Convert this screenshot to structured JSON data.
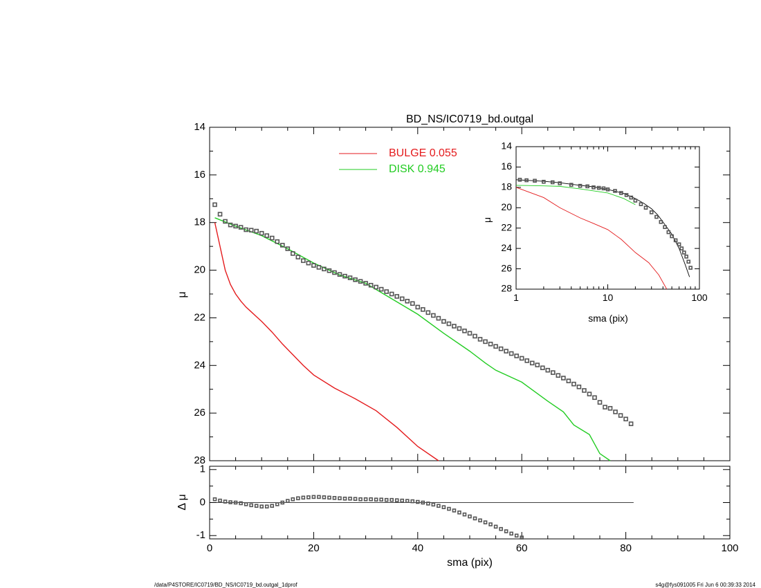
{
  "chart_data": [
    {
      "id": "main",
      "type": "line",
      "title": "BD_NS/IC0719_bd.outgal",
      "xlabel": "",
      "ylabel": "μ",
      "xlim": [
        0,
        100
      ],
      "ylim": [
        28,
        14
      ],
      "x_ticks": [
        0,
        20,
        40,
        60,
        80,
        100
      ],
      "y_ticks": [
        14,
        16,
        18,
        20,
        22,
        24,
        26,
        28
      ],
      "legend_position": "top-center",
      "series": [
        {
          "name": "BULGE  0.055",
          "color": "#e41a1c",
          "x": [
            1,
            2,
            3,
            4,
            5,
            6,
            7,
            8,
            9,
            10,
            12,
            14,
            16,
            18,
            20,
            24,
            28,
            32,
            36,
            40,
            44
          ],
          "y": [
            18.0,
            19.0,
            20.0,
            20.6,
            21.0,
            21.3,
            21.55,
            21.75,
            21.95,
            22.15,
            22.6,
            23.1,
            23.55,
            24.0,
            24.4,
            24.95,
            25.4,
            25.9,
            26.6,
            27.4,
            28.0
          ]
        },
        {
          "name": "DISK  0.945",
          "color": "#22cc22",
          "x": [
            1,
            5,
            10,
            15,
            20,
            25,
            30,
            35,
            40,
            45,
            50,
            53,
            55,
            60,
            65,
            68,
            70,
            73,
            75,
            78
          ],
          "y": [
            17.8,
            18.15,
            18.55,
            19.1,
            19.7,
            20.2,
            20.55,
            21.2,
            21.85,
            22.65,
            23.4,
            23.9,
            24.2,
            24.7,
            25.5,
            25.95,
            26.5,
            26.9,
            27.7,
            28.15
          ]
        },
        {
          "name": "",
          "color": "#555555",
          "kind": "data-points",
          "x": [
            1,
            2,
            3,
            4,
            5,
            6,
            7,
            8,
            9,
            10,
            11,
            12,
            13,
            14,
            15,
            16,
            17,
            18,
            19,
            20,
            21,
            22,
            23,
            24,
            25,
            26,
            27,
            28,
            29,
            30,
            31,
            32,
            33,
            34,
            35,
            36,
            37,
            38,
            39,
            40,
            41,
            42,
            43,
            44,
            45,
            46,
            47,
            48,
            49,
            50,
            51,
            52,
            53,
            54,
            55,
            56,
            57,
            58,
            59,
            60,
            61,
            62,
            63,
            64,
            65,
            66,
            67,
            68,
            69,
            70,
            71,
            72,
            73,
            74,
            75,
            76,
            77,
            78,
            79,
            80,
            81
          ],
          "y": [
            17.25,
            17.65,
            17.95,
            18.1,
            18.15,
            18.2,
            18.3,
            18.32,
            18.36,
            18.45,
            18.55,
            18.65,
            18.8,
            18.95,
            19.1,
            19.3,
            19.45,
            19.6,
            19.7,
            19.8,
            19.88,
            19.95,
            20.02,
            20.1,
            20.18,
            20.25,
            20.32,
            20.4,
            20.47,
            20.55,
            20.63,
            20.71,
            20.8,
            20.9,
            21.0,
            21.1,
            21.2,
            21.3,
            21.4,
            21.55,
            21.65,
            21.78,
            21.9,
            22.02,
            22.15,
            22.25,
            22.35,
            22.45,
            22.55,
            22.65,
            22.77,
            22.9,
            23.0,
            23.1,
            23.2,
            23.3,
            23.4,
            23.5,
            23.6,
            23.7,
            23.8,
            23.9,
            23.98,
            24.1,
            24.2,
            24.3,
            24.42,
            24.53,
            24.65,
            24.78,
            24.9,
            25.05,
            25.2,
            25.35,
            25.55,
            25.75,
            25.8,
            25.95,
            26.1,
            26.25,
            26.45
          ]
        }
      ]
    },
    {
      "id": "residual",
      "type": "scatter",
      "title": "",
      "xlabel": "sma (pix)",
      "ylabel": "Δ μ",
      "xlim": [
        0,
        100
      ],
      "ylim": [
        -1.1,
        1.1
      ],
      "x_ticks": [
        0,
        20,
        40,
        60,
        80,
        100
      ],
      "y_ticks": [
        1,
        0,
        -1
      ],
      "zero_line_range": [
        1,
        81.5
      ],
      "series": [
        {
          "name": "",
          "color": "#555555",
          "x": [
            1,
            2,
            3,
            4,
            5,
            6,
            7,
            8,
            9,
            10,
            11,
            12,
            13,
            14,
            15,
            16,
            17,
            18,
            19,
            20,
            21,
            22,
            23,
            24,
            25,
            26,
            27,
            28,
            29,
            30,
            31,
            32,
            33,
            34,
            35,
            36,
            37,
            38,
            39,
            40,
            41,
            42,
            43,
            44,
            45,
            46,
            47,
            48,
            49,
            50,
            51,
            52,
            53,
            54,
            55,
            56,
            57,
            58,
            59,
            60
          ],
          "y": [
            0.1,
            0.06,
            0.03,
            0.01,
            0.0,
            -0.02,
            -0.05,
            -0.08,
            -0.1,
            -0.12,
            -0.12,
            -0.1,
            -0.05,
            0.0,
            0.05,
            0.1,
            0.13,
            0.15,
            0.16,
            0.17,
            0.17,
            0.16,
            0.15,
            0.14,
            0.13,
            0.12,
            0.12,
            0.11,
            0.1,
            0.1,
            0.1,
            0.09,
            0.09,
            0.08,
            0.08,
            0.07,
            0.06,
            0.05,
            0.04,
            0.02,
            0.0,
            -0.03,
            -0.06,
            -0.1,
            -0.14,
            -0.19,
            -0.24,
            -0.3,
            -0.36,
            -0.42,
            -0.48,
            -0.54,
            -0.6,
            -0.66,
            -0.73,
            -0.8,
            -0.87,
            -0.94,
            -1.0,
            -1.06
          ]
        }
      ]
    },
    {
      "id": "inset",
      "type": "line",
      "title": "",
      "xlabel": "sma (pix)",
      "ylabel": "μ",
      "x_scale": "log",
      "xlim": [
        1,
        100
      ],
      "ylim": [
        28,
        14
      ],
      "x_ticks": [
        1,
        10,
        100
      ],
      "y_ticks": [
        14,
        16,
        18,
        20,
        22,
        24,
        26,
        28
      ],
      "series": [
        {
          "name": "",
          "color": "#e41a1c",
          "x": [
            1,
            2,
            3,
            5,
            7,
            10,
            14,
            20,
            28,
            36,
            44
          ],
          "y": [
            18.0,
            19.0,
            20.0,
            21.0,
            21.55,
            22.15,
            23.1,
            24.4,
            25.4,
            26.6,
            28.0
          ]
        },
        {
          "name": "",
          "color": "#22cc22",
          "x": [
            1,
            2,
            3,
            5,
            10,
            15,
            20
          ],
          "y": [
            17.8,
            17.85,
            17.9,
            18.15,
            18.55,
            19.1,
            19.7
          ]
        },
        {
          "name": "",
          "color": "#000000",
          "kind": "model",
          "x": [
            1,
            2,
            3,
            5,
            7,
            10,
            15,
            20,
            25,
            30,
            35,
            40,
            50,
            60,
            70,
            78
          ],
          "y": [
            17.25,
            17.4,
            17.55,
            17.8,
            17.95,
            18.2,
            18.6,
            19.1,
            19.6,
            20.1,
            20.7,
            21.4,
            22.6,
            24.0,
            25.6,
            26.8
          ]
        },
        {
          "name": "",
          "color": "#555555",
          "kind": "data-points",
          "x": [
            1.1,
            1.3,
            1.6,
            2,
            2.5,
            3,
            4,
            5,
            6,
            7,
            8,
            9,
            10,
            12,
            14,
            16,
            18,
            20,
            23,
            26,
            30,
            34,
            38,
            42,
            46,
            50,
            55,
            60,
            64,
            68,
            72,
            76,
            80
          ],
          "y": [
            17.25,
            17.3,
            17.35,
            17.45,
            17.5,
            17.6,
            17.75,
            17.85,
            17.9,
            18.0,
            18.05,
            18.1,
            18.2,
            18.35,
            18.55,
            18.75,
            19.0,
            19.3,
            19.65,
            20.0,
            20.45,
            20.9,
            21.4,
            21.9,
            22.4,
            22.8,
            23.2,
            23.6,
            24.0,
            24.4,
            24.8,
            25.3,
            25.9
          ]
        }
      ]
    }
  ],
  "footer": {
    "left": "/data/P4STORE/IC0719/BD_NS/IC0719_bd.outgal_1dprof",
    "right": "s4g@fys091005  Fri Jun  6 00:39:33 2014"
  }
}
